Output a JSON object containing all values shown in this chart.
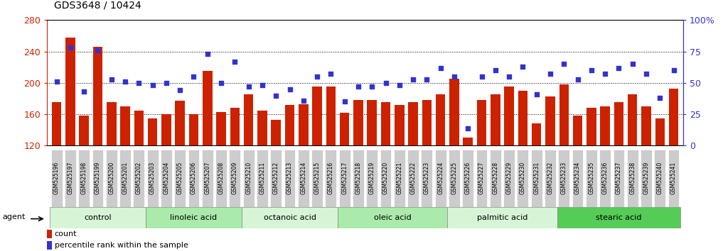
{
  "title": "GDS3648 / 10424",
  "samples": [
    "GSM525196",
    "GSM525197",
    "GSM525198",
    "GSM525199",
    "GSM525200",
    "GSM525201",
    "GSM525202",
    "GSM525203",
    "GSM525204",
    "GSM525205",
    "GSM525206",
    "GSM525207",
    "GSM525208",
    "GSM525209",
    "GSM525210",
    "GSM525211",
    "GSM525212",
    "GSM525213",
    "GSM525214",
    "GSM525215",
    "GSM525216",
    "GSM525217",
    "GSM525218",
    "GSM525219",
    "GSM525220",
    "GSM525221",
    "GSM525222",
    "GSM525223",
    "GSM525224",
    "GSM525225",
    "GSM525226",
    "GSM525227",
    "GSM525228",
    "GSM525229",
    "GSM525230",
    "GSM525231",
    "GSM525232",
    "GSM525233",
    "GSM525234",
    "GSM525235",
    "GSM525236",
    "GSM525237",
    "GSM525238",
    "GSM525239",
    "GSM525240",
    "GSM525241"
  ],
  "counts": [
    175,
    258,
    158,
    246,
    175,
    170,
    165,
    155,
    160,
    177,
    160,
    215,
    163,
    168,
    185,
    165,
    153,
    172,
    173,
    195,
    195,
    162,
    178,
    178,
    175,
    172,
    175,
    178,
    185,
    205,
    130,
    178,
    185,
    195,
    190,
    148,
    183,
    198,
    158,
    168,
    170,
    175,
    185,
    170,
    155,
    193
  ],
  "percentiles": [
    51,
    78,
    43,
    76,
    53,
    51,
    50,
    48,
    50,
    44,
    55,
    73,
    50,
    67,
    47,
    48,
    40,
    45,
    36,
    55,
    57,
    35,
    47,
    47,
    50,
    48,
    53,
    53,
    62,
    55,
    14,
    55,
    60,
    55,
    63,
    41,
    57,
    65,
    53,
    60,
    57,
    62,
    65,
    57,
    38,
    60
  ],
  "groups": [
    {
      "label": "control",
      "start": 0,
      "end": 7,
      "color": "#d6f5d6"
    },
    {
      "label": "linoleic acid",
      "start": 7,
      "end": 14,
      "color": "#aaeaaa"
    },
    {
      "label": "octanoic acid",
      "start": 14,
      "end": 21,
      "color": "#d6f5d6"
    },
    {
      "label": "oleic acid",
      "start": 21,
      "end": 29,
      "color": "#aaeaaa"
    },
    {
      "label": "palmitic acid",
      "start": 29,
      "end": 37,
      "color": "#d6f5d6"
    },
    {
      "label": "stearic acid",
      "start": 37,
      "end": 46,
      "color": "#55cc55"
    }
  ],
  "bar_color": "#cc2200",
  "dot_color": "#3333cc",
  "ylim_left": [
    120,
    280
  ],
  "ylim_right": [
    0,
    100
  ],
  "yticks_left": [
    120,
    160,
    200,
    240,
    280
  ],
  "yticks_right": [
    0,
    25,
    50,
    75,
    100
  ],
  "grid_yticks": [
    160,
    200,
    240
  ],
  "background_color": "#ffffff",
  "ticklabel_bg": "#cccccc",
  "bar_bottom": 120
}
